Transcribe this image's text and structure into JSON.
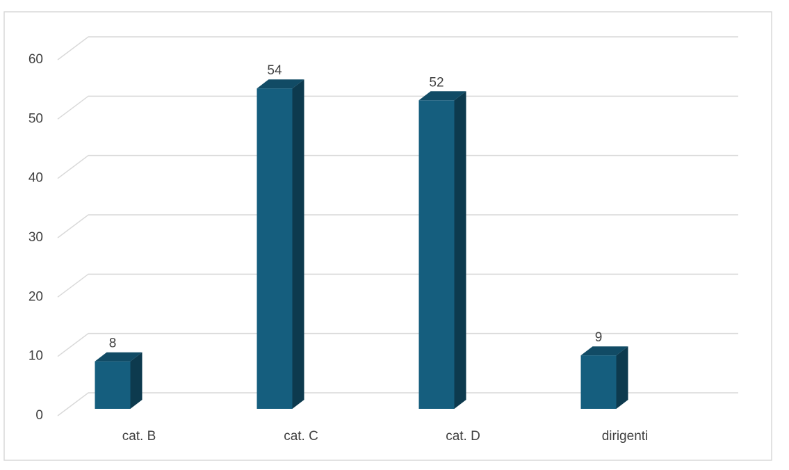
{
  "chart_data": {
    "type": "bar3d",
    "categories": [
      "cat. B",
      "cat. C",
      "cat. D",
      "dirigenti"
    ],
    "values": [
      8,
      54,
      52,
      9
    ],
    "color": "#155e7e",
    "ylim": [
      0,
      60
    ],
    "yticks": [
      0,
      10,
      20,
      30,
      40,
      50,
      60
    ],
    "grid": true
  }
}
